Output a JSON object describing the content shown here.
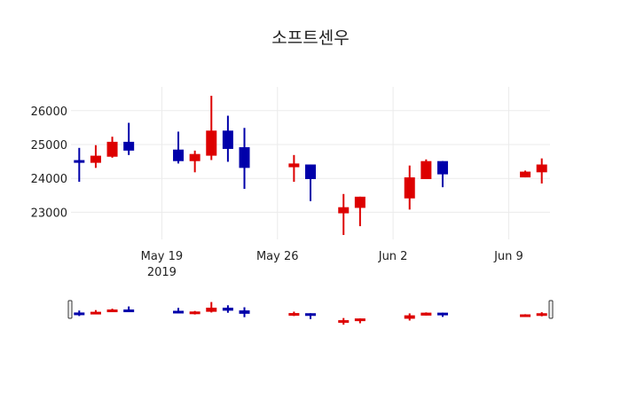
{
  "chart_data": {
    "type": "candlestick",
    "title": "소프트센우",
    "xlabel": "",
    "ylabel": "",
    "ylim": [
      22200,
      26700
    ],
    "yticks": [
      23000,
      24000,
      25000,
      26000
    ],
    "xticks": [
      {
        "date": "2019-05-19",
        "label": "May 19",
        "sublabel": "2019"
      },
      {
        "date": "2019-05-26",
        "label": "May 26",
        "sublabel": ""
      },
      {
        "date": "2019-06-02",
        "label": "Jun 2",
        "sublabel": ""
      },
      {
        "date": "2019-06-09",
        "label": "Jun 9",
        "sublabel": ""
      }
    ],
    "xrange": [
      "2019-05-13T12:00",
      "2019-06-11T12:00"
    ],
    "grid": true,
    "rangeslider": true,
    "increasing_color": "#dd0000",
    "decreasing_color": "#0000aa",
    "candles": [
      {
        "date": "2019-05-14",
        "open": 24540,
        "high": 24900,
        "low": 23900,
        "close": 24460
      },
      {
        "date": "2019-05-15",
        "open": 24460,
        "high": 24980,
        "low": 24310,
        "close": 24670
      },
      {
        "date": "2019-05-16",
        "open": 24640,
        "high": 25230,
        "low": 24610,
        "close": 25080
      },
      {
        "date": "2019-05-17",
        "open": 25080,
        "high": 25640,
        "low": 24690,
        "close": 24820
      },
      {
        "date": "2019-05-20",
        "open": 24850,
        "high": 25380,
        "low": 24440,
        "close": 24510
      },
      {
        "date": "2019-05-21",
        "open": 24510,
        "high": 24820,
        "low": 24180,
        "close": 24720
      },
      {
        "date": "2019-05-22",
        "open": 24670,
        "high": 26440,
        "low": 24540,
        "close": 25410
      },
      {
        "date": "2019-05-23",
        "open": 25410,
        "high": 25850,
        "low": 24490,
        "close": 24870
      },
      {
        "date": "2019-05-24",
        "open": 24920,
        "high": 25490,
        "low": 23690,
        "close": 24310
      },
      {
        "date": "2019-05-27",
        "open": 24330,
        "high": 24690,
        "low": 23900,
        "close": 24440
      },
      {
        "date": "2019-05-28",
        "open": 24410,
        "high": 24410,
        "low": 23330,
        "close": 23980
      },
      {
        "date": "2019-05-30",
        "open": 22970,
        "high": 23540,
        "low": 22330,
        "close": 23150
      },
      {
        "date": "2019-05-31",
        "open": 23130,
        "high": 23460,
        "low": 22590,
        "close": 23460
      },
      {
        "date": "2019-06-03",
        "open": 23410,
        "high": 24380,
        "low": 23080,
        "close": 24030
      },
      {
        "date": "2019-06-04",
        "open": 23980,
        "high": 24560,
        "low": 23980,
        "close": 24510
      },
      {
        "date": "2019-06-05",
        "open": 24510,
        "high": 24510,
        "low": 23740,
        "close": 24120
      },
      {
        "date": "2019-06-10",
        "open": 24030,
        "high": 24230,
        "low": 24030,
        "close": 24200
      },
      {
        "date": "2019-06-11",
        "open": 24180,
        "high": 24590,
        "low": 23850,
        "close": 24410
      }
    ]
  }
}
